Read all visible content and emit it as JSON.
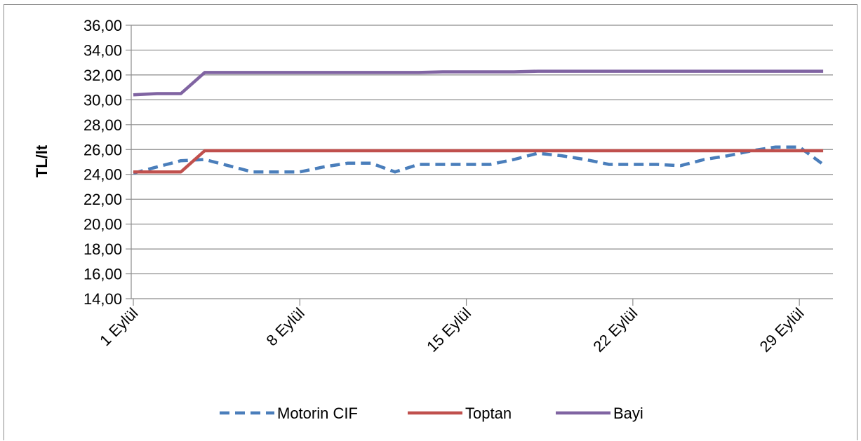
{
  "chart_data": {
    "type": "line",
    "title": "",
    "xlabel": "",
    "ylabel": "TL/lt",
    "ylim": [
      14,
      36
    ],
    "yticks": [
      "14,00",
      "16,00",
      "18,00",
      "20,00",
      "22,00",
      "24,00",
      "26,00",
      "28,00",
      "30,00",
      "32,00",
      "34,00",
      "36,00"
    ],
    "xtick_labels": [
      {
        "day": 1,
        "label": "1 Eylül"
      },
      {
        "day": 8,
        "label": "8 Eylül"
      },
      {
        "day": 15,
        "label": "15 Eylül"
      },
      {
        "day": 22,
        "label": "22 Eylül"
      },
      {
        "day": 29,
        "label": "29 Eylül"
      }
    ],
    "x": [
      1,
      2,
      3,
      4,
      5,
      6,
      7,
      8,
      9,
      10,
      11,
      12,
      13,
      14,
      15,
      16,
      17,
      18,
      19,
      20,
      21,
      22,
      23,
      24,
      25,
      26,
      27,
      28,
      29,
      30
    ],
    "grid": true,
    "legend": "bottom",
    "series": [
      {
        "name": "Motorin CIF",
        "color": "#4a7ebb",
        "dash": true,
        "values": [
          24.1,
          24.6,
          25.1,
          25.2,
          24.7,
          24.2,
          24.2,
          24.2,
          24.6,
          24.9,
          24.9,
          24.2,
          24.8,
          24.8,
          24.8,
          24.8,
          25.2,
          25.7,
          25.5,
          25.2,
          24.8,
          24.8,
          24.8,
          24.7,
          25.2,
          25.5,
          25.9,
          26.2,
          26.2,
          24.8
        ]
      },
      {
        "name": "Toptan",
        "color": "#c0504d",
        "dash": false,
        "values": [
          24.2,
          24.2,
          24.2,
          25.9,
          25.9,
          25.9,
          25.9,
          25.9,
          25.9,
          25.9,
          25.9,
          25.9,
          25.9,
          25.9,
          25.9,
          25.9,
          25.9,
          25.9,
          25.9,
          25.9,
          25.9,
          25.9,
          25.9,
          25.9,
          25.9,
          25.9,
          25.9,
          25.9,
          25.9,
          25.9
        ]
      },
      {
        "name": "Bayi",
        "color": "#8064a2",
        "dash": false,
        "values": [
          30.4,
          30.5,
          30.5,
          32.2,
          32.2,
          32.2,
          32.2,
          32.2,
          32.2,
          32.2,
          32.2,
          32.2,
          32.2,
          32.25,
          32.25,
          32.25,
          32.25,
          32.3,
          32.3,
          32.3,
          32.3,
          32.3,
          32.3,
          32.3,
          32.3,
          32.3,
          32.3,
          32.3,
          32.3,
          32.3
        ]
      }
    ]
  }
}
